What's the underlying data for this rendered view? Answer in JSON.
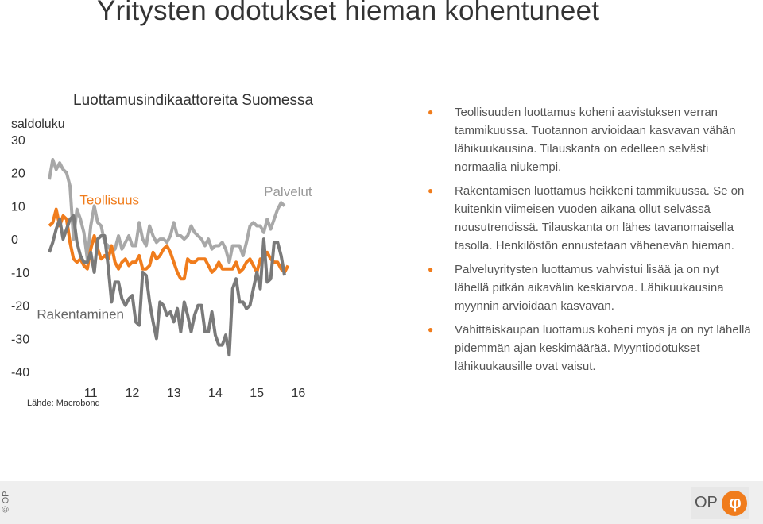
{
  "slide": {
    "title": "Yritysten odotukset hieman kohentuneet",
    "chart_title": "Luottamusindikaattoreita Suomessa",
    "source": "Lähde: Macrobond",
    "copyright": "© OP",
    "logo_text": "OP",
    "bullets": [
      "Teollisuuden luottamus koheni aavistuksen verran tammikuussa. Tuotannon arvioidaan kasvavan vähän lähikuukausina. Tilauskanta on edelleen selvästi normaalia niukempi.",
      "Rakentamisen luottamus heikkeni tammikuussa. Se on kuitenkin viimeisen vuoden aikana ollut selvässä nousutrendissä. Tilauskanta on lähes tavanomaisella tasolla. Henkilöstön ennustetaan vähenevän hieman.",
      "Palveluyritysten luottamus vahvistui lisää ja on nyt lähellä pitkän aikavälin keskiarvoa. Lähikuukausina myynnin arvioidaan kasvavan.",
      "Vähittäiskaupan luottamus koheni myös ja on nyt lähellä pidemmän ajan keskimäärää. Myyntiodotukset lähikuukausille ovat vaisut."
    ]
  },
  "colors": {
    "palvelut": "#a8a8a8",
    "teollisuus": "#f07c1c",
    "rakentaminen": "#7a7a7a",
    "bullet": "#f07c1c"
  },
  "chart_data": {
    "type": "line",
    "title": "Luottamusindikaattoreita Suomessa",
    "ylabel": "saldoluku",
    "ylim": [
      -40,
      30
    ],
    "yticks": [
      30,
      20,
      10,
      0,
      -10,
      -20,
      -30,
      -40
    ],
    "xlim": [
      2010.5,
      2017.2
    ],
    "xticks": [
      11,
      12,
      13,
      14,
      15,
      16
    ],
    "grid": false,
    "series": [
      {
        "name": "Palvelut",
        "x_start": 2010.5,
        "step": 0.08333,
        "values": [
          18,
          24,
          21,
          23,
          21,
          20,
          16,
          0,
          9,
          6,
          2,
          -6,
          4,
          10,
          5,
          4,
          -1,
          -2,
          -4,
          -3,
          1,
          -3,
          -1,
          1,
          -2,
          -2,
          5,
          0,
          -2,
          4,
          1,
          -1,
          0,
          0,
          -1,
          1,
          5,
          1,
          1,
          0,
          1,
          4,
          2,
          1,
          0,
          -2,
          0,
          -3,
          -2,
          -2,
          -1,
          -3,
          -7,
          -2,
          -2,
          -2,
          -5,
          -1,
          4,
          5,
          4,
          4,
          2,
          6,
          3,
          6,
          9,
          11,
          10
        ]
      },
      {
        "name": "Teollisuus",
        "x_start": 2010.5,
        "step": 0.08333,
        "values": [
          4,
          5,
          9,
          4,
          7,
          6,
          -1,
          -6,
          -7,
          -6,
          -8,
          -9,
          -3,
          1,
          -3,
          -6,
          -5,
          -6,
          -2,
          -7,
          -9,
          -7,
          -6,
          -8,
          -7,
          -7,
          -5,
          -9,
          -9,
          -8,
          -4,
          -6,
          -5,
          -3,
          -2,
          -4,
          -7,
          -10,
          -12,
          -12,
          -6,
          -7,
          -7,
          -6,
          -6,
          -6,
          -8,
          -10,
          -9,
          -7,
          -9,
          -9,
          -9,
          -9,
          -7,
          -10,
          -9,
          -7,
          -6,
          -8,
          -10,
          -6,
          -6,
          -4,
          -6,
          -7,
          -7,
          -9,
          -10,
          -8
        ]
      },
      {
        "name": "Rakentaminen",
        "x_start": 2010.5,
        "step": 0.08333,
        "values": [
          -4,
          -1,
          3,
          6,
          0,
          3,
          6,
          7,
          -1,
          -5,
          -7,
          -7,
          -4,
          -10,
          0,
          1,
          1,
          -8,
          -19,
          -13,
          -13,
          -18,
          -20,
          -18,
          -17,
          -25,
          -26,
          -10,
          -11,
          -19,
          -25,
          -30,
          -19,
          -20,
          -23,
          -22,
          -25,
          -21,
          -28,
          -19,
          -23,
          -28,
          -23,
          -20,
          -20,
          -28,
          -28,
          -22,
          -29,
          -32,
          -32,
          -29,
          -35,
          -15,
          -12,
          -19,
          -19,
          -21,
          -20,
          -15,
          -10,
          -15,
          0,
          -13,
          -12,
          -1,
          -1,
          -5,
          -11
        ]
      }
    ]
  }
}
